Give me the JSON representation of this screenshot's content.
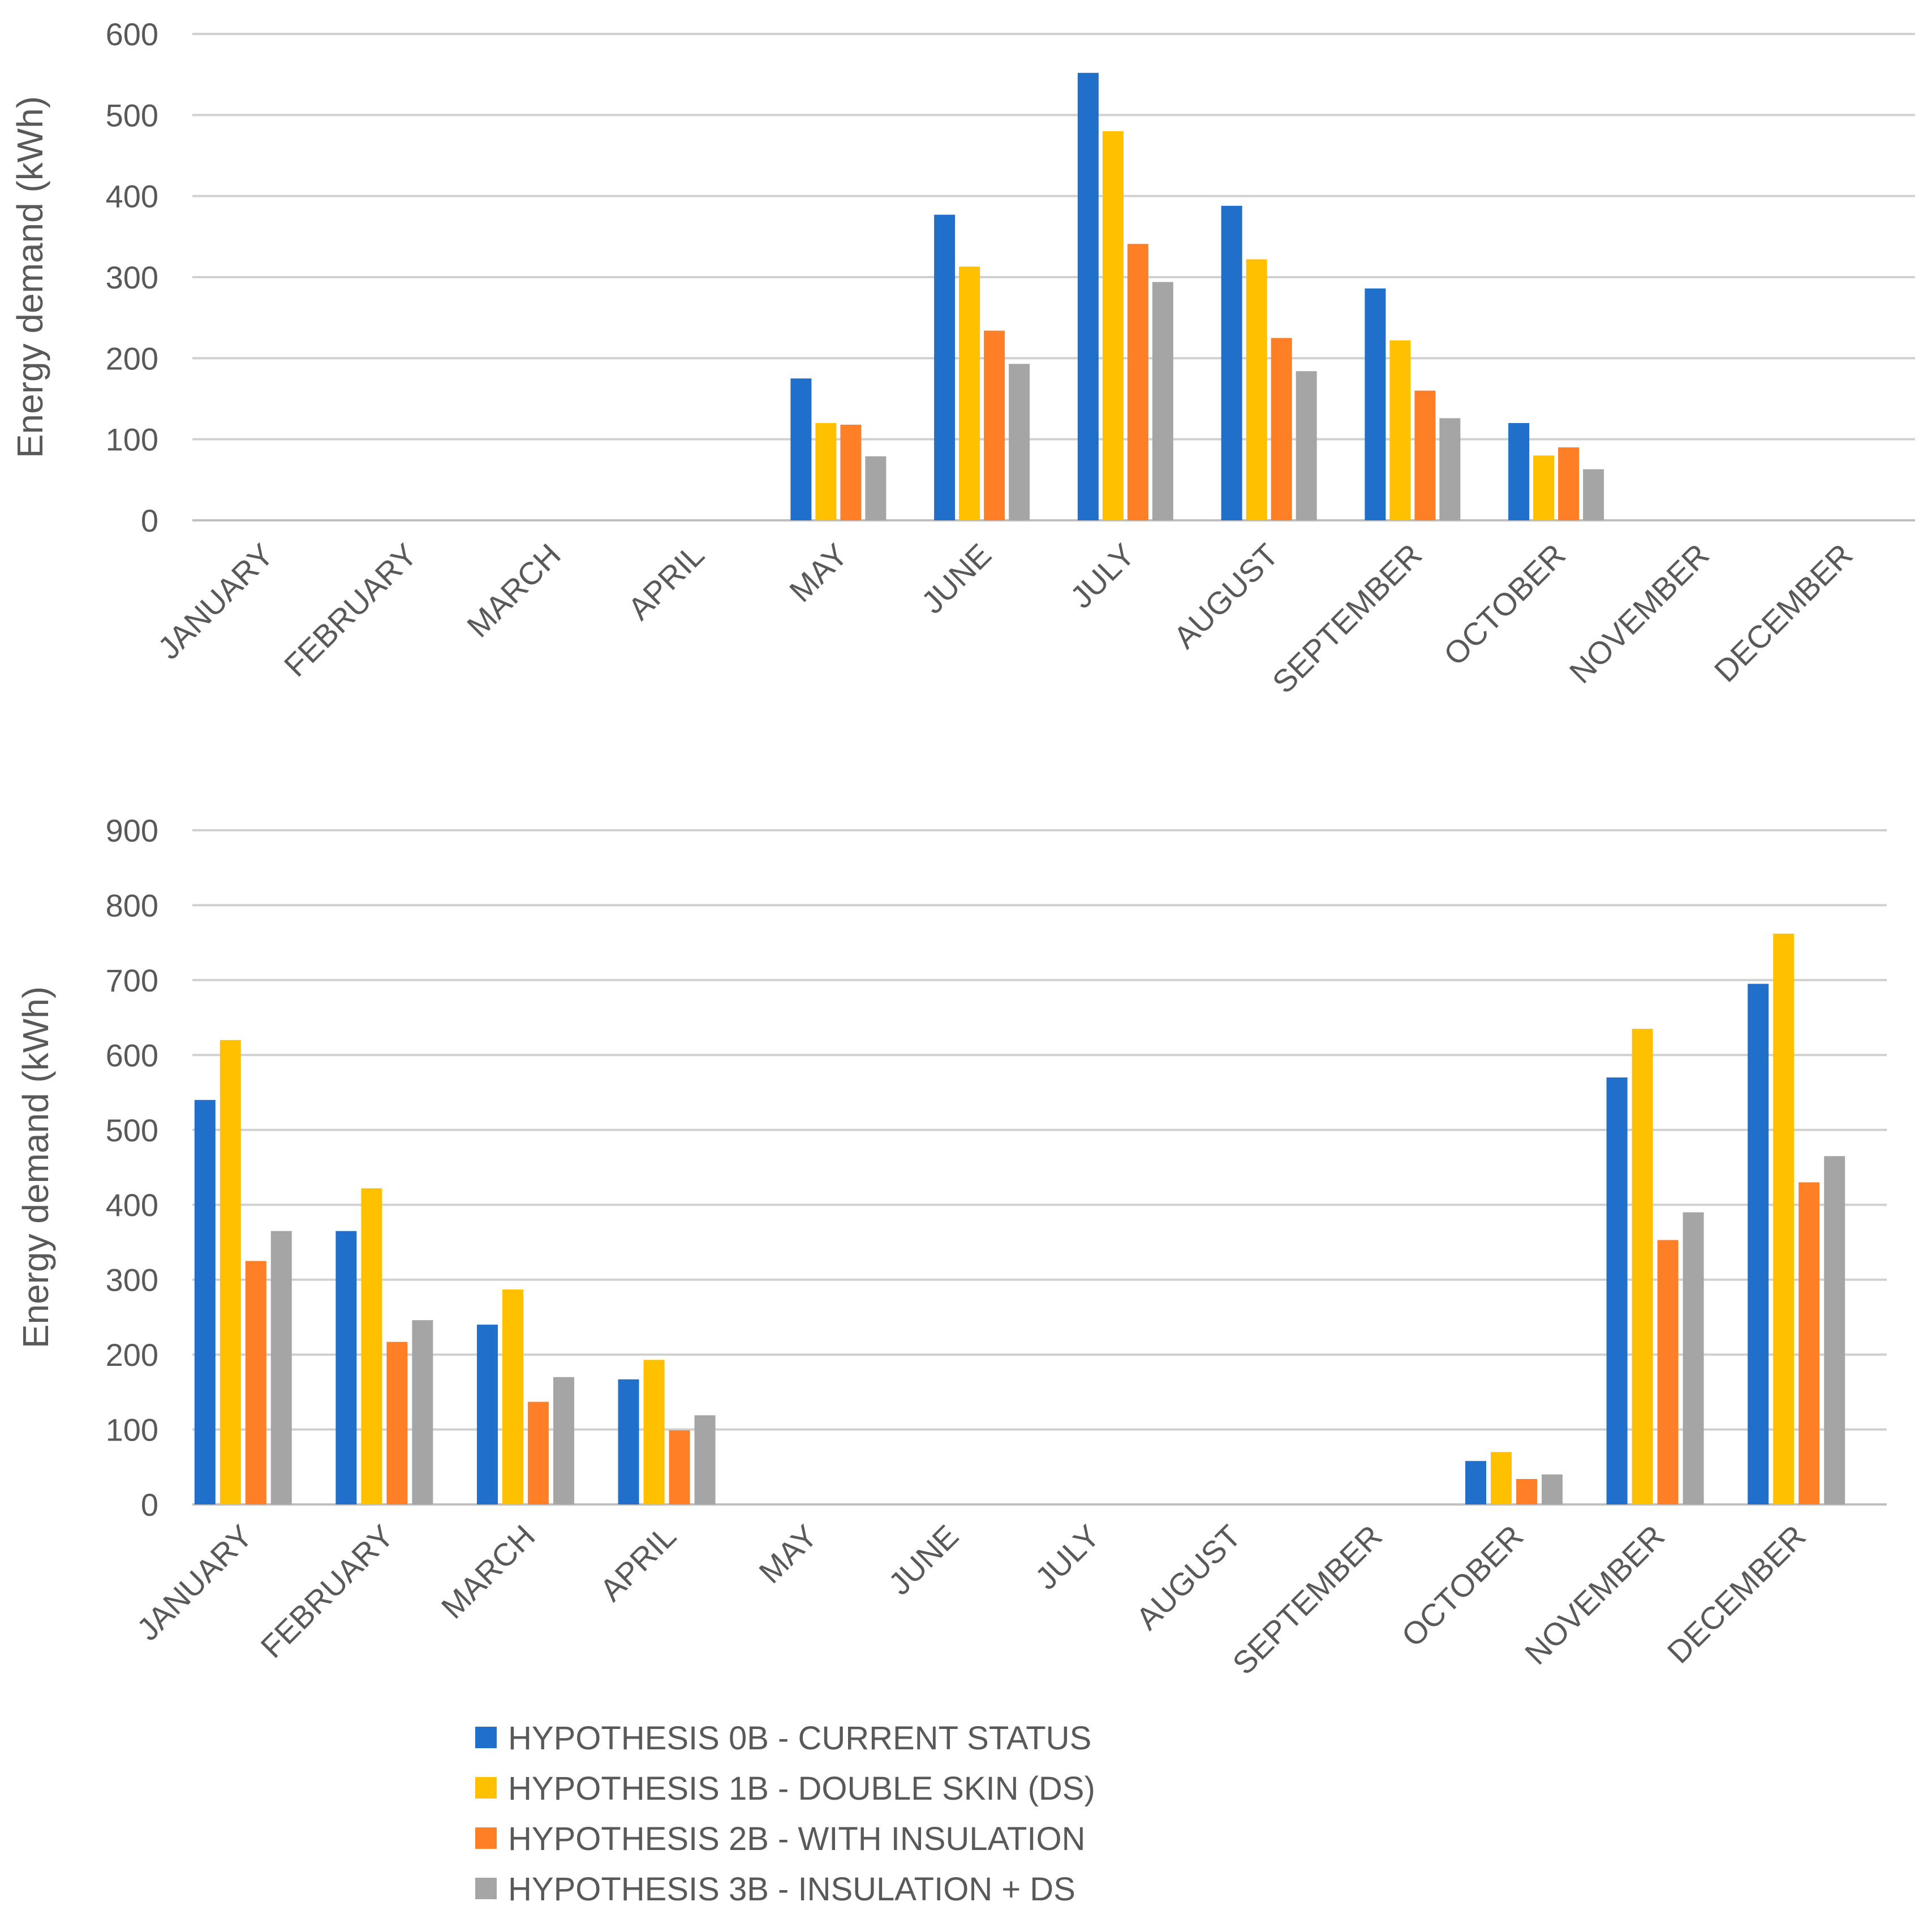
{
  "chart_data": [
    {
      "type": "bar",
      "title": "",
      "xlabel": "",
      "ylabel": "Energy demand (kWh)",
      "ylim": [
        0,
        600
      ],
      "yticks": [
        0,
        100,
        200,
        300,
        400,
        500,
        600
      ],
      "grid": true,
      "categories": [
        "JANUARY",
        "FEBRUARY",
        "MARCH",
        "APRIL",
        "MAY",
        "JUNE",
        "JULY",
        "AUGUST",
        "SEPTEMBER",
        "OCTOBER",
        "NOVEMBER",
        "DECEMBER"
      ],
      "series": [
        {
          "name": "HYPOTHESIS 0B - CURRENT STATUS",
          "values": [
            0,
            0,
            0,
            0,
            175,
            377,
            552,
            388,
            286,
            120,
            0,
            0
          ]
        },
        {
          "name": "HYPOTHESIS 1B - DOUBLE SKIN (DS)",
          "values": [
            0,
            0,
            0,
            0,
            120,
            313,
            480,
            322,
            222,
            80,
            0,
            0
          ]
        },
        {
          "name": "HYPOTHESIS 2B - WITH INSULATION",
          "values": [
            0,
            0,
            0,
            0,
            118,
            234,
            341,
            225,
            160,
            90,
            0,
            0
          ]
        },
        {
          "name": "HYPOTHESIS 3B - INSULATION + DS",
          "values": [
            0,
            0,
            0,
            0,
            79,
            193,
            294,
            184,
            126,
            63,
            0,
            0
          ]
        }
      ]
    },
    {
      "type": "bar",
      "title": "",
      "xlabel": "",
      "ylabel": "Energy demand (kWh)",
      "ylim": [
        0,
        900
      ],
      "yticks": [
        0,
        100,
        200,
        300,
        400,
        500,
        600,
        700,
        800,
        900
      ],
      "grid": true,
      "categories": [
        "JANUARY",
        "FEBRUARY",
        "MARCH",
        "APRIL",
        "MAY",
        "JUNE",
        "JULY",
        "AUGUST",
        "SEPTEMBER",
        "OCTOBER",
        "NOVEMBER",
        "DECEMBER"
      ],
      "series": [
        {
          "name": "HYPOTHESIS 0B - CURRENT STATUS",
          "values": [
            540,
            365,
            240,
            167,
            0,
            0,
            0,
            0,
            0,
            58,
            570,
            695
          ]
        },
        {
          "name": "HYPOTHESIS 1B - DOUBLE SKIN (DS)",
          "values": [
            620,
            422,
            287,
            193,
            0,
            0,
            0,
            0,
            0,
            70,
            635,
            762
          ]
        },
        {
          "name": "HYPOTHESIS 2B - WITH INSULATION",
          "values": [
            325,
            217,
            137,
            99,
            0,
            0,
            0,
            0,
            0,
            34,
            353,
            430
          ]
        },
        {
          "name": "HYPOTHESIS 3B - INSULATION + DS",
          "values": [
            365,
            246,
            170,
            119,
            0,
            0,
            0,
            0,
            0,
            40,
            390,
            465
          ]
        }
      ]
    }
  ],
  "legend": {
    "position": "bottom",
    "items": [
      {
        "label": "HYPOTHESIS 0B - CURRENT STATUS",
        "color": "#1F6FCB"
      },
      {
        "label": "HYPOTHESIS 1B - DOUBLE SKIN (DS)",
        "color": "#FFC000"
      },
      {
        "label": "HYPOTHESIS 2B - WITH INSULATION",
        "color": "#FF7F27"
      },
      {
        "label": "HYPOTHESIS 3B - INSULATION + DS",
        "color": "#A5A5A5"
      }
    ]
  }
}
